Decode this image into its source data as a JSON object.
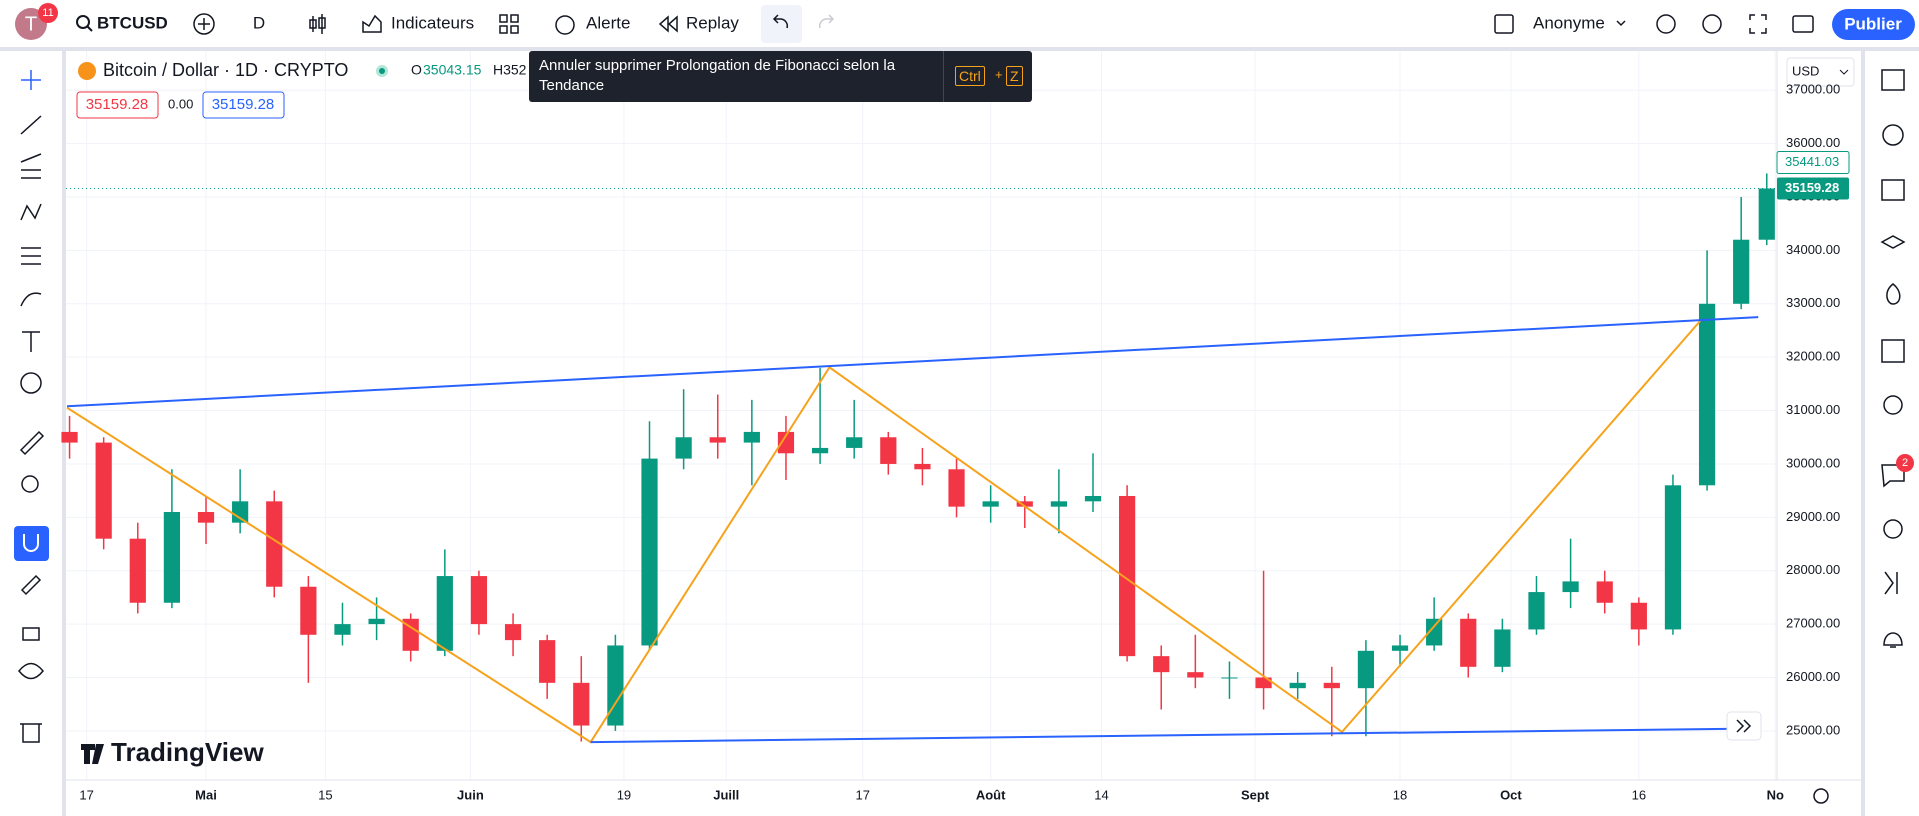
{
  "topbar": {
    "avatar": "T",
    "badge": "11",
    "symbol": "BTCUSD",
    "interval": "D",
    "indicators": "Indicateurs",
    "alert": "Alerte",
    "replay": "Replay",
    "user": "Anonyme",
    "publish": "Publier"
  },
  "legend": {
    "title": "Bitcoin / Dollar · 1D · CRYPTO",
    "open_label": "O",
    "open_value": "35043.15",
    "high_partial": "H352",
    "sell": "35159.28",
    "spread": "0.00",
    "buy": "35159.28"
  },
  "tooltip": {
    "text": "Annuler supprimer Prolongation de Fibonacci selon la Tendance",
    "key1": "Ctrl",
    "plus": "+",
    "key2": "Z"
  },
  "currency": "USD",
  "logo": "TradingView",
  "notification_badge": "2",
  "chart_data": {
    "type": "candlestick",
    "up_color": "#089981",
    "down_color": "#f23645",
    "x": [
      -2,
      2,
      6,
      10,
      14,
      18,
      22,
      26,
      30,
      34,
      38,
      42,
      46,
      50,
      54,
      58,
      62,
      66,
      70,
      74,
      78,
      82,
      86,
      90,
      94,
      98,
      102,
      106,
      110,
      114,
      118,
      122,
      126,
      130,
      134,
      138,
      142,
      146,
      150,
      154,
      158,
      162,
      166,
      170,
      174,
      178,
      182,
      186,
      190,
      194,
      197
    ],
    "ohlc": [
      [
        30600,
        30900,
        30100,
        30400
      ],
      [
        30400,
        30500,
        28400,
        28600
      ],
      [
        28600,
        28900,
        27200,
        27400
      ],
      [
        27400,
        29900,
        27300,
        29100
      ],
      [
        29100,
        29400,
        28500,
        28900
      ],
      [
        28900,
        29900,
        28700,
        29300
      ],
      [
        29300,
        29500,
        27500,
        27700
      ],
      [
        27700,
        27900,
        25900,
        26800
      ],
      [
        26800,
        27400,
        26600,
        27000
      ],
      [
        27000,
        27500,
        26700,
        27100
      ],
      [
        27100,
        27200,
        26300,
        26500
      ],
      [
        26500,
        28400,
        26400,
        27900
      ],
      [
        27900,
        28000,
        26800,
        27000
      ],
      [
        27000,
        27200,
        26400,
        26700
      ],
      [
        26700,
        26800,
        25600,
        25900
      ],
      [
        25900,
        26400,
        24800,
        25100
      ],
      [
        25100,
        26800,
        25000,
        26600
      ],
      [
        26600,
        30800,
        26500,
        30100
      ],
      [
        30100,
        31400,
        29900,
        30500
      ],
      [
        30500,
        31300,
        30100,
        30400
      ],
      [
        30400,
        31200,
        29600,
        30600
      ],
      [
        30600,
        30900,
        29700,
        30200
      ],
      [
        30200,
        31800,
        30000,
        30300
      ],
      [
        30300,
        31200,
        30100,
        30500
      ],
      [
        30500,
        30600,
        29800,
        30000
      ],
      [
        30000,
        30300,
        29600,
        29900
      ],
      [
        29900,
        30100,
        29000,
        29200
      ],
      [
        29200,
        29600,
        28900,
        29300
      ],
      [
        29300,
        29400,
        28800,
        29200
      ],
      [
        29200,
        29900,
        28700,
        29300
      ],
      [
        29300,
        30200,
        29100,
        29400
      ],
      [
        29400,
        29600,
        26300,
        26400
      ],
      [
        26400,
        26600,
        25400,
        26100
      ],
      [
        26100,
        26800,
        25800,
        26000
      ],
      [
        26000,
        26300,
        25600,
        26000
      ],
      [
        26000,
        28000,
        25400,
        25800
      ],
      [
        25800,
        26100,
        25600,
        25900
      ],
      [
        25900,
        26200,
        24900,
        25800
      ],
      [
        25800,
        26700,
        24900,
        26500
      ],
      [
        26500,
        26800,
        26200,
        26600
      ],
      [
        26600,
        27500,
        26500,
        27100
      ],
      [
        27100,
        27200,
        26000,
        26200
      ],
      [
        26200,
        27100,
        26100,
        26900
      ],
      [
        26900,
        27900,
        26800,
        27600
      ],
      [
        27600,
        28600,
        27300,
        27800
      ],
      [
        27800,
        28000,
        27200,
        27400
      ],
      [
        27400,
        27500,
        26600,
        26900
      ],
      [
        26900,
        29800,
        26800,
        29600
      ],
      [
        29600,
        34000,
        29500,
        33000
      ],
      [
        33000,
        35000,
        32900,
        34200
      ],
      [
        34200,
        35441.03,
        34100,
        35159.28
      ]
    ],
    "xlim": [
      -2.3,
      198.2
    ],
    "ylim": [
      24080,
      37660
    ],
    "xticks": [
      {
        "value": 0,
        "label": "17"
      },
      {
        "value": 14,
        "label": "Mai"
      },
      {
        "value": 28,
        "label": "15"
      },
      {
        "value": 45,
        "label": "Juin"
      },
      {
        "value": 63,
        "label": "19"
      },
      {
        "value": 75,
        "label": "Juill"
      },
      {
        "value": 91,
        "label": "17"
      },
      {
        "value": 106,
        "label": "Août"
      },
      {
        "value": 119,
        "label": "14"
      },
      {
        "value": 137,
        "label": "Sept"
      },
      {
        "value": 154,
        "label": "18"
      },
      {
        "value": 167,
        "label": "Oct"
      },
      {
        "value": 182,
        "label": "16"
      },
      {
        "value": 198,
        "label": "No"
      }
    ],
    "yticks": [
      {
        "value": 25000,
        "label": "25000.00"
      },
      {
        "value": 26000,
        "label": "26000.00"
      },
      {
        "value": 27000,
        "label": "27000.00"
      },
      {
        "value": 28000,
        "label": "28000.00"
      },
      {
        "value": 29000,
        "label": "29000.00"
      },
      {
        "value": 30000,
        "label": "30000.00"
      },
      {
        "value": 31000,
        "label": "31000.00"
      },
      {
        "value": 32000,
        "label": "32000.00"
      },
      {
        "value": 33000,
        "label": "33000.00"
      },
      {
        "value": 34000,
        "label": "34000.00"
      },
      {
        "value": 35000,
        "label": "35000.00"
      },
      {
        "value": 36000,
        "label": "36000.00"
      },
      {
        "value": 37000,
        "label": "37000.00"
      }
    ],
    "grid": true,
    "high_price": 35441.03,
    "last_price": 35159.28,
    "drawings": [
      {
        "color": "#f7a21b",
        "x": [
          -2.3,
          59.1,
          87.1,
          147.2,
          189.2
        ],
        "y": [
          31055,
          24790,
          31810,
          24980,
          32680
        ]
      },
      {
        "color": "#2962ff",
        "x": [
          -2.3,
          196
        ],
        "y": [
          31080,
          32750
        ]
      },
      {
        "color": "#2962ff",
        "x": [
          59.1,
          196
        ],
        "y": [
          24790,
          25045
        ]
      }
    ]
  }
}
